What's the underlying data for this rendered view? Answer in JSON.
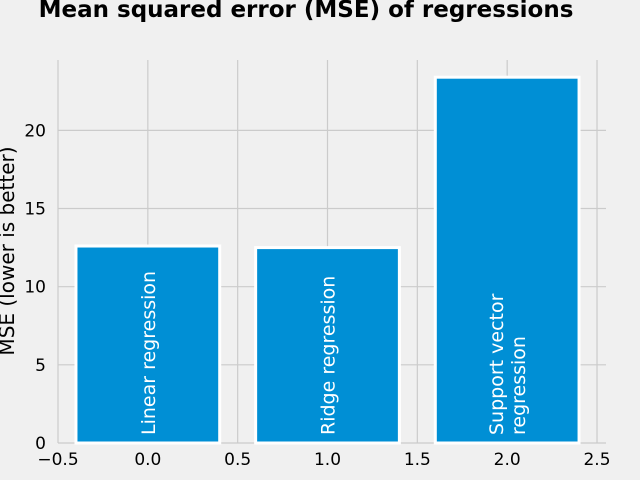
{
  "chart_data": {
    "type": "bar",
    "title": "Mean squared error (MSE) of regressions",
    "ylabel": "MSE (lower is better)",
    "xlabel": "",
    "xlim": [
      -0.5,
      2.55
    ],
    "ylim": [
      0,
      24.5
    ],
    "x_ticks": [
      -0.5,
      0.0,
      0.5,
      1.0,
      1.5,
      2.0,
      2.5
    ],
    "x_tick_labels": [
      "−0.5",
      "0.0",
      "0.5",
      "1.0",
      "1.5",
      "2.0",
      "2.5"
    ],
    "y_ticks": [
      0,
      5,
      10,
      15,
      20
    ],
    "y_tick_labels": [
      "0",
      "5",
      "10",
      "15",
      "20"
    ],
    "grid": true,
    "bar_width": 0.8,
    "bars": [
      {
        "x": 0,
        "value": 12.6,
        "label_lines": [
          "Linear regression"
        ]
      },
      {
        "x": 1,
        "value": 12.5,
        "label_lines": [
          "Ridge regression"
        ]
      },
      {
        "x": 2,
        "value": 23.4,
        "label_lines": [
          "Support vector",
          "regression"
        ]
      }
    ],
    "colors": {
      "bar": "#008fd5",
      "bar_edge": "#ffffff",
      "bar_text": "#ffffff",
      "background": "#f0f0f0",
      "grid": "#cbcbcb",
      "text": "#000000"
    }
  }
}
